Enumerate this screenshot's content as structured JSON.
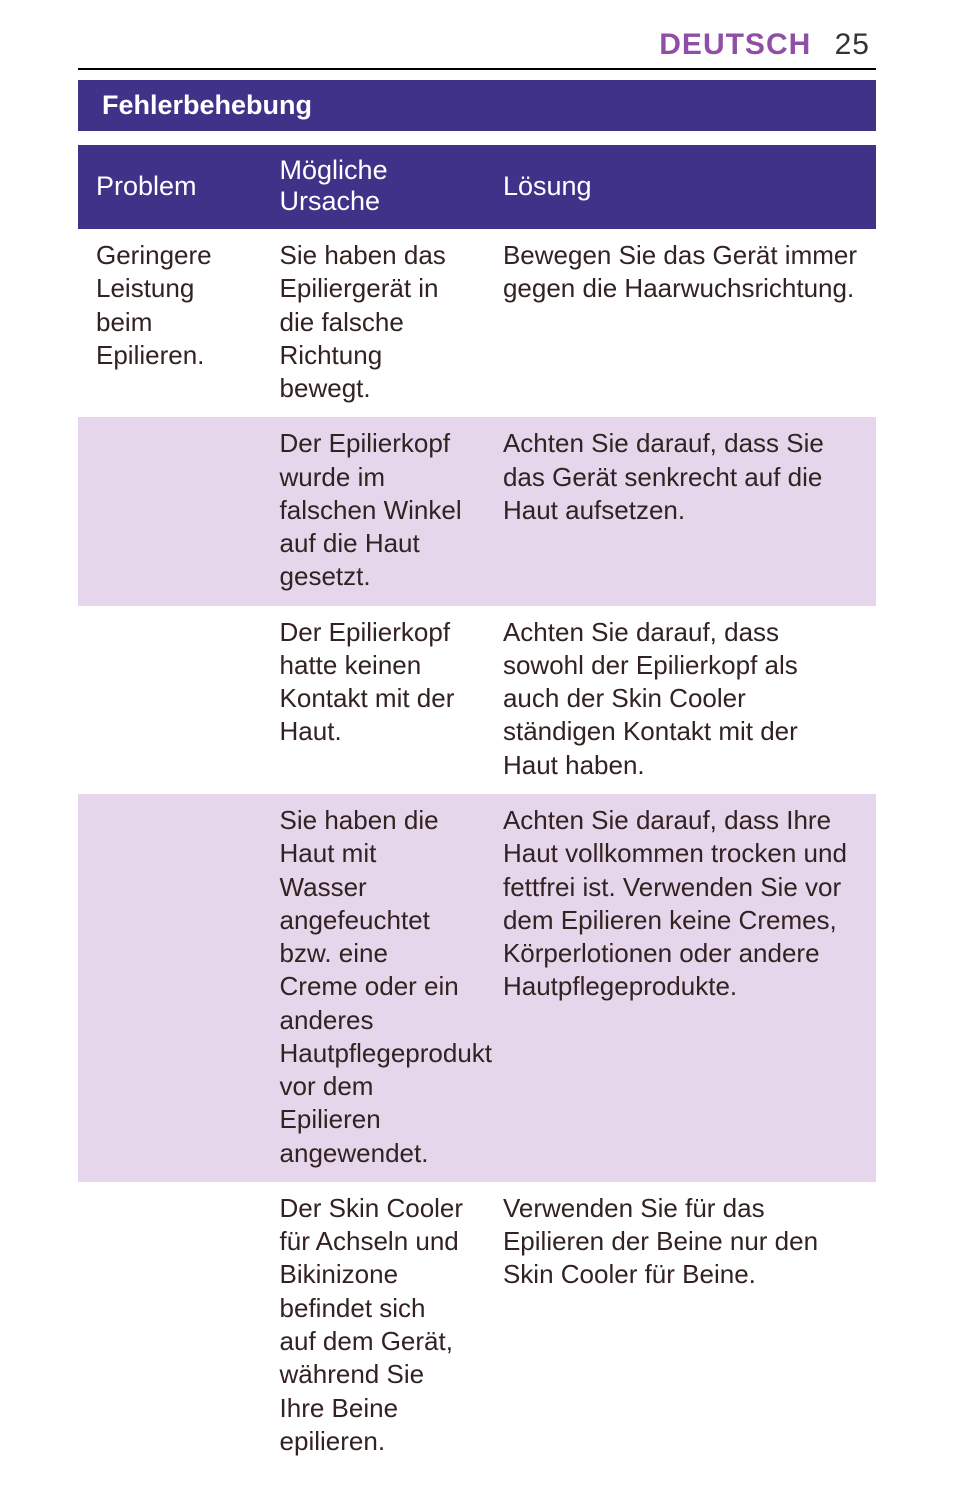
{
  "page": {
    "language": "DEUTSCH",
    "number": "25"
  },
  "colors": {
    "accent": "#8f4fa6",
    "section_bar_bg": "#403189",
    "table_header_bg": "#403189",
    "row_alt_bg": "#e5d6eb",
    "row_bg": "#ffffff",
    "text": "#2b2422"
  },
  "section": {
    "title": "Fehlerbehebung"
  },
  "table": {
    "type": "table",
    "columns": [
      "Problem",
      "Mögliche Ursache",
      "Lösung"
    ],
    "column_widths_pct": [
      23,
      28,
      49
    ],
    "header_fontsize": 27,
    "cell_fontsize": 26,
    "rows": [
      {
        "problem": "Geringere Leistung beim Epilieren.",
        "cause": "Sie haben das Epiliergerät in die falsche Richtung bewegt.",
        "solution": "Bewegen Sie das Gerät immer gegen die Haarwuchsrichtung.",
        "alt": false
      },
      {
        "problem": "",
        "cause": "Der Epilierkopf wurde im falschen Winkel auf die Haut gesetzt.",
        "solution": "Achten Sie darauf, dass Sie das Gerät senkrecht auf die Haut aufsetzen.",
        "alt": true
      },
      {
        "problem": "",
        "cause": "Der Epilierkopf hatte keinen Kontakt mit der Haut.",
        "solution": "Achten Sie darauf, dass sowohl der Epilierkopf als auch der Skin Cooler ständigen Kontakt mit der Haut haben.",
        "alt": false
      },
      {
        "problem": "",
        "cause": "Sie haben die Haut mit Wasser angefeuchtet bzw. eine Creme oder ein anderes Hautpflegeprodukt vor dem Epilieren angewendet.",
        "solution": "Achten Sie darauf, dass Ihre Haut vollkommen trocken und fettfrei ist. Verwenden Sie vor dem Epilieren keine Cremes, Körperlotionen oder andere Hautpflegeprodukte.",
        "alt": true
      },
      {
        "problem": "",
        "cause": "Der Skin Cooler für Achseln und Bikinizone befindet sich auf dem Gerät, während Sie Ihre Beine epilieren.",
        "solution": "Verwenden Sie für das Epilieren der Beine nur den Skin Cooler für Beine.",
        "alt": false
      }
    ]
  }
}
